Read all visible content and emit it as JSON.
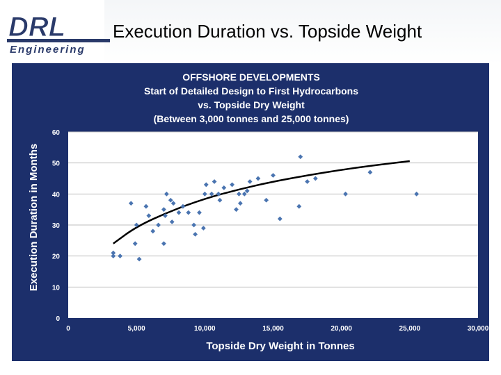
{
  "slide": {
    "title": "Execution Duration vs. Topside Weight",
    "logo": {
      "word": "DRL",
      "sub": "Engineering"
    }
  },
  "chart_data": {
    "type": "scatter",
    "title_lines": [
      "OFFSHORE DEVELOPMENTS",
      "Start of Detailed Design to First Hydrocarbons",
      "vs. Topside Dry Weight",
      "(Between 3,000 tonnes and 25,000 tonnes)"
    ],
    "xlabel": "Topside Dry Weight in Tonnes",
    "ylabel": "Execution Duration in Months",
    "xlim": [
      0,
      30000
    ],
    "ylim": [
      0,
      60
    ],
    "xticks": [
      0,
      5000,
      10000,
      15000,
      20000,
      25000,
      30000
    ],
    "xtick_labels": [
      "0",
      "5,000",
      "10,000",
      "15,000",
      "20,000",
      "25,000",
      "30,000"
    ],
    "yticks": [
      0,
      10,
      20,
      30,
      40,
      50,
      60
    ],
    "ytick_labels": [
      "0",
      "10",
      "20",
      "30",
      "40",
      "50",
      "60"
    ],
    "grid": "horizontal",
    "colors": {
      "background": "#1c2f6b",
      "plot_area": "#ffffff",
      "points": "#4a74b0",
      "trend": "#000000",
      "grid": "#bfbfbf"
    },
    "series": [
      {
        "points": [
          [
            3300,
            21
          ],
          [
            3300,
            20
          ],
          [
            3800,
            20
          ],
          [
            4600,
            37
          ],
          [
            4900,
            24
          ],
          [
            5000,
            30
          ],
          [
            5200,
            19
          ],
          [
            5700,
            36
          ],
          [
            5900,
            33
          ],
          [
            6200,
            28
          ],
          [
            6600,
            30
          ],
          [
            7000,
            35
          ],
          [
            7000,
            24
          ],
          [
            7100,
            33
          ],
          [
            7200,
            40
          ],
          [
            7500,
            38
          ],
          [
            7600,
            31
          ],
          [
            7700,
            37
          ],
          [
            8100,
            34
          ],
          [
            8400,
            36
          ],
          [
            8800,
            34
          ],
          [
            9200,
            30
          ],
          [
            9300,
            27
          ],
          [
            9600,
            34
          ],
          [
            9900,
            29
          ],
          [
            10000,
            40
          ],
          [
            10100,
            43
          ],
          [
            10500,
            40
          ],
          [
            10700,
            44
          ],
          [
            11000,
            40
          ],
          [
            11100,
            38
          ],
          [
            11400,
            42
          ],
          [
            12000,
            43
          ],
          [
            12300,
            35
          ],
          [
            12500,
            40
          ],
          [
            12600,
            37
          ],
          [
            12900,
            40
          ],
          [
            13100,
            41
          ],
          [
            13300,
            44
          ],
          [
            13900,
            45
          ],
          [
            14500,
            38
          ],
          [
            15000,
            46
          ],
          [
            15500,
            32
          ],
          [
            16900,
            36
          ],
          [
            17000,
            52
          ],
          [
            17500,
            44
          ],
          [
            18100,
            45
          ],
          [
            20300,
            40
          ],
          [
            22100,
            47
          ],
          [
            25500,
            40
          ]
        ]
      }
    ],
    "trendline": {
      "type": "logarithmic",
      "points": [
        [
          3300,
          24
        ],
        [
          5000,
          29.5
        ],
        [
          7500,
          34.5
        ],
        [
          10000,
          38.5
        ],
        [
          12500,
          41.5
        ],
        [
          15000,
          44
        ],
        [
          17500,
          46
        ],
        [
          20000,
          47.8
        ],
        [
          22500,
          49.3
        ],
        [
          25000,
          50.6
        ]
      ]
    }
  }
}
